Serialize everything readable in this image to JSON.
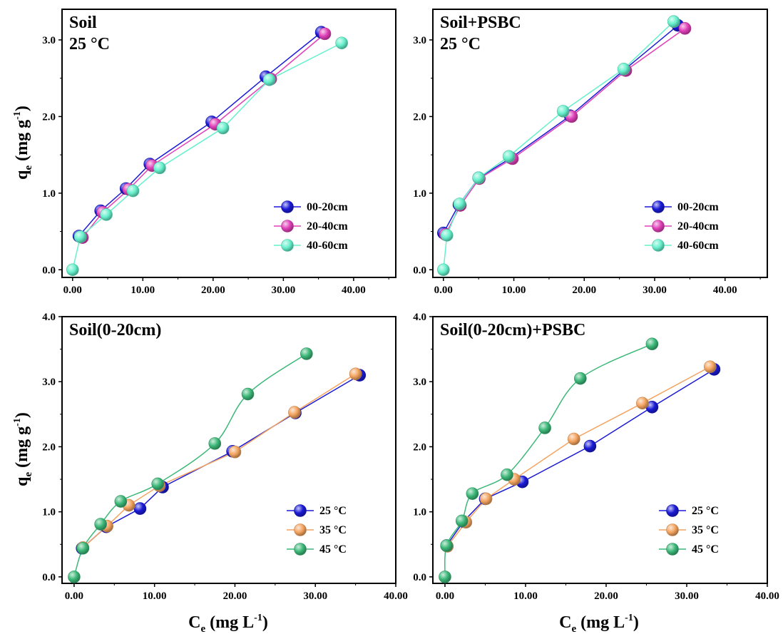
{
  "figure": {
    "y_axis_label": "q",
    "y_axis_label_sub": "e",
    "y_axis_label_unit": "(mg g",
    "y_axis_label_sup": "-1",
    "y_axis_label_close": ")",
    "x_axis_label": "C",
    "x_axis_label_sub": "e",
    "x_axis_label_unit": "(mg L",
    "x_axis_label_sup": "-1",
    "x_axis_label_close": ")"
  },
  "chart_data": [
    {
      "type": "line",
      "panel": "top-left",
      "title_lines": [
        "Soil",
        "25 °C"
      ],
      "xlim": [
        -1.5,
        46
      ],
      "ylim": [
        -0.1,
        3.4
      ],
      "xticks": [
        0,
        10,
        20,
        30,
        40
      ],
      "xtick_labels": [
        "0.00",
        "10.00",
        "20.00",
        "30.00",
        "40.00"
      ],
      "yticks": [
        0,
        1,
        2,
        3
      ],
      "ytick_labels": [
        "0.0",
        "1.0",
        "2.0",
        "3.0"
      ],
      "legend_position": "lower-right",
      "series": [
        {
          "name": "00-20cm",
          "color": "#1a1ad6",
          "x": [
            0.9,
            4.0,
            7.6,
            11.0,
            19.8,
            27.5,
            35.4
          ],
          "y": [
            0.44,
            0.77,
            1.06,
            1.38,
            1.93,
            2.52,
            3.1
          ]
        },
        {
          "name": "20-40cm",
          "color": "#e040b8",
          "x": [
            1.4,
            4.3,
            8.0,
            11.3,
            20.3,
            28.2,
            35.9
          ],
          "y": [
            0.42,
            0.75,
            1.05,
            1.36,
            1.9,
            2.49,
            3.08
          ]
        },
        {
          "name": "40-60cm",
          "color": "#66f0cc",
          "x": [
            0.0,
            1.1,
            4.8,
            8.6,
            12.4,
            21.4,
            28.0,
            38.3
          ],
          "y": [
            0.0,
            0.43,
            0.72,
            1.03,
            1.33,
            1.85,
            2.48,
            2.96
          ]
        }
      ]
    },
    {
      "type": "line",
      "panel": "top-right",
      "title_lines": [
        "Soil+PSBC",
        "25 °C"
      ],
      "xlim": [
        -1.5,
        46
      ],
      "ylim": [
        -0.1,
        3.4
      ],
      "xticks": [
        0,
        10,
        20,
        30,
        40
      ],
      "xtick_labels": [
        "0.00",
        "10.00",
        "20.00",
        "30.00",
        "40.00"
      ],
      "yticks": [
        0,
        1,
        2,
        3
      ],
      "ytick_labels": [
        "0.0",
        "1.0",
        "2.0",
        "3.0"
      ],
      "legend_position": "lower-right",
      "series": [
        {
          "name": "00-20cm",
          "color": "#1a1ad6",
          "x": [
            0.0,
            2.2,
            5.0,
            9.6,
            18.0,
            25.7,
            33.3
          ],
          "y": [
            0.48,
            0.85,
            1.2,
            1.46,
            2.01,
            2.61,
            3.19
          ]
        },
        {
          "name": "20-40cm",
          "color": "#e040b8",
          "x": [
            0.3,
            2.4,
            5.1,
            9.8,
            18.2,
            25.9,
            34.3
          ],
          "y": [
            0.46,
            0.84,
            1.19,
            1.45,
            2.0,
            2.6,
            3.15
          ]
        },
        {
          "name": "40-60cm",
          "color": "#66f0cc",
          "x": [
            0.0,
            0.5,
            2.3,
            5.0,
            9.3,
            17.0,
            25.6,
            32.7
          ],
          "y": [
            0.0,
            0.45,
            0.86,
            1.2,
            1.48,
            2.07,
            2.62,
            3.24
          ]
        }
      ]
    },
    {
      "type": "line",
      "panel": "bottom-left",
      "title_lines": [
        "Soil(0-20cm)"
      ],
      "xlim": [
        -1.5,
        40
      ],
      "ylim": [
        -0.1,
        4.0
      ],
      "xticks": [
        0,
        10,
        20,
        30,
        40
      ],
      "xtick_labels": [
        "0.00",
        "10.00",
        "20.00",
        "30.00",
        "40.00"
      ],
      "yticks": [
        0,
        1,
        2,
        3,
        4
      ],
      "ytick_labels": [
        "0.0",
        "1.0",
        "2.0",
        "3.0",
        "4.0"
      ],
      "legend_position": "lower-right",
      "series": [
        {
          "name": "25 °C",
          "color": "#1a1ad6",
          "smooth": false,
          "x": [
            1.0,
            4.0,
            8.2,
            11.0,
            19.7,
            27.5,
            35.5
          ],
          "y": [
            0.44,
            0.77,
            1.05,
            1.38,
            1.93,
            2.52,
            3.1
          ]
        },
        {
          "name": "35 °C",
          "color": "#f4a460",
          "smooth": false,
          "x": [
            1.1,
            4.1,
            6.8,
            10.6,
            20.0,
            27.4,
            35.0
          ],
          "y": [
            0.45,
            0.78,
            1.1,
            1.4,
            1.92,
            2.53,
            3.12
          ]
        },
        {
          "name": "45 °C",
          "color": "#3cb878",
          "smooth": true,
          "x": [
            0.0,
            1.1,
            3.3,
            5.8,
            10.4,
            17.5,
            21.6,
            28.9
          ],
          "y": [
            0.0,
            0.44,
            0.81,
            1.16,
            1.43,
            2.05,
            2.81,
            3.43
          ]
        }
      ]
    },
    {
      "type": "line",
      "panel": "bottom-right",
      "title_lines": [
        "Soil(0-20cm)+PSBC"
      ],
      "xlim": [
        -1.5,
        40
      ],
      "ylim": [
        -0.1,
        4.0
      ],
      "xticks": [
        0,
        10,
        20,
        30,
        40
      ],
      "xtick_labels": [
        "0.00",
        "10.00",
        "20.00",
        "30.00",
        "40.00"
      ],
      "yticks": [
        0,
        1,
        2,
        3,
        4
      ],
      "ytick_labels": [
        "0.0",
        "1.0",
        "2.0",
        "3.0",
        "4.0"
      ],
      "legend_position": "lower-right",
      "series": [
        {
          "name": "25 °C",
          "color": "#1a1ad6",
          "smooth": false,
          "x": [
            0.2,
            2.3,
            5.0,
            9.6,
            18.0,
            25.7,
            33.4
          ],
          "y": [
            0.48,
            0.85,
            1.2,
            1.46,
            2.01,
            2.61,
            3.19
          ]
        },
        {
          "name": "35 °C",
          "color": "#f4a460",
          "smooth": false,
          "x": [
            0.3,
            2.6,
            5.1,
            8.6,
            16.0,
            24.5,
            32.9
          ],
          "y": [
            0.47,
            0.84,
            1.2,
            1.5,
            2.12,
            2.67,
            3.23
          ]
        },
        {
          "name": "45 °C",
          "color": "#3cb878",
          "smooth": true,
          "x": [
            0.0,
            0.2,
            2.1,
            3.4,
            7.7,
            12.4,
            16.8,
            25.7
          ],
          "y": [
            0.0,
            0.48,
            0.86,
            1.28,
            1.57,
            2.29,
            3.05,
            3.58
          ]
        }
      ]
    }
  ]
}
